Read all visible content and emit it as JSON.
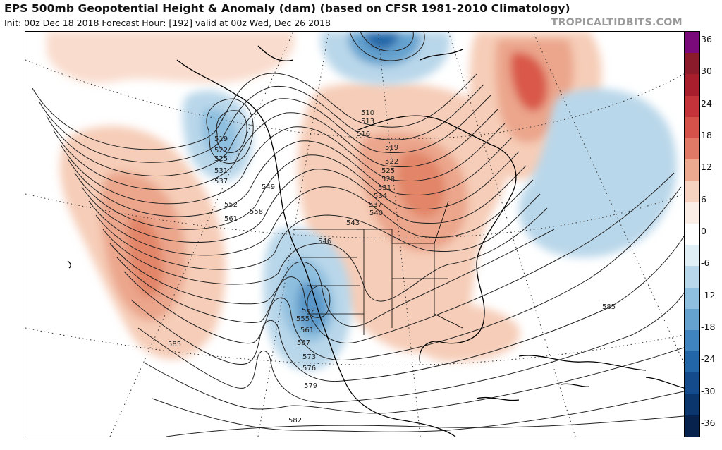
{
  "header": {
    "title": "EPS 500mb Geopotential Height & Anomaly (dam) (based on CFSR 1981-2010 Climatology)",
    "subtitle": "Init: 00z Dec 18 2018   Forecast Hour: [192]   valid at 00z Wed, Dec 26 2018",
    "watermark": "TROPICALTIDBITS.COM"
  },
  "colorbar": {
    "ticks": [
      "36",
      "30",
      "24",
      "18",
      "12",
      "6",
      "0",
      "-6",
      "-12",
      "-18",
      "-24",
      "-30",
      "-36"
    ],
    "colors": [
      "#7a0a7a",
      "#8b1a2a",
      "#a81e2c",
      "#c4333a",
      "#d4524a",
      "#e07a66",
      "#eda890",
      "#f6d2c0",
      "#fbeee6",
      "#ffffff",
      "#e0eef6",
      "#b9d7ea",
      "#8fbfdf",
      "#65a2cf",
      "#3f84bf",
      "#2266a8",
      "#144b8c",
      "#0b356d",
      "#07224c"
    ]
  },
  "map": {
    "contour_labels": [
      {
        "id": "510",
        "text": "510"
      },
      {
        "id": "513",
        "text": "513"
      },
      {
        "id": "516",
        "text": "516"
      },
      {
        "id": "519a",
        "text": "519"
      },
      {
        "id": "519b",
        "text": "519"
      },
      {
        "id": "522a",
        "text": "522"
      },
      {
        "id": "522b",
        "text": "522"
      },
      {
        "id": "525a",
        "text": "525"
      },
      {
        "id": "525b",
        "text": "525"
      },
      {
        "id": "528",
        "text": "528"
      },
      {
        "id": "531a",
        "text": "531"
      },
      {
        "id": "531b",
        "text": "531"
      },
      {
        "id": "534",
        "text": "534"
      },
      {
        "id": "537a",
        "text": "537"
      },
      {
        "id": "537b",
        "text": "537"
      },
      {
        "id": "540",
        "text": "540"
      },
      {
        "id": "543",
        "text": "543"
      },
      {
        "id": "546",
        "text": "546"
      },
      {
        "id": "549",
        "text": "549"
      },
      {
        "id": "552a",
        "text": "552"
      },
      {
        "id": "552b",
        "text": "552"
      },
      {
        "id": "555",
        "text": "555"
      },
      {
        "id": "558",
        "text": "558"
      },
      {
        "id": "561a",
        "text": "561"
      },
      {
        "id": "561b",
        "text": "561"
      },
      {
        "id": "567",
        "text": "567"
      },
      {
        "id": "573",
        "text": "573"
      },
      {
        "id": "576",
        "text": "576"
      },
      {
        "id": "579",
        "text": "579"
      },
      {
        "id": "582",
        "text": "582"
      },
      {
        "id": "585a",
        "text": "585"
      },
      {
        "id": "585b",
        "text": "585"
      }
    ]
  }
}
